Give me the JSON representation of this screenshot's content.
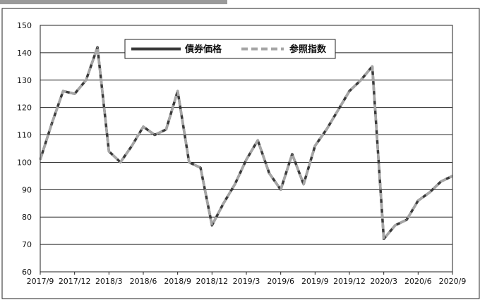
{
  "colors": {
    "bond": "#3a3a3a",
    "reference": "#a6a6a6",
    "grid": "#222222",
    "tab": "#9a9a9a"
  },
  "chart_data": {
    "type": "line",
    "title": "",
    "xlabel": "",
    "ylabel": "",
    "ylim": [
      60,
      150
    ],
    "yticks": [
      60,
      70,
      80,
      90,
      100,
      110,
      120,
      130,
      140,
      150
    ],
    "grid": true,
    "legend_position": "top-center",
    "x_tick_labels": [
      "2017/9",
      "2017/12",
      "2018/3",
      "2018/6",
      "2018/9",
      "2018/12",
      "2019/3",
      "2019/6",
      "2019/9",
      "2019/12",
      "2020/3",
      "2020/6",
      "2020/9"
    ],
    "x": [
      "2017/9",
      "2017/10",
      "2017/11",
      "2017/12",
      "2018/1",
      "2018/2",
      "2018/3",
      "2018/4",
      "2018/5",
      "2018/6",
      "2018/7",
      "2018/8",
      "2018/9",
      "2018/10",
      "2018/11",
      "2018/12",
      "2019/1",
      "2019/2",
      "2019/3",
      "2019/4",
      "2019/5",
      "2019/6",
      "2019/7",
      "2019/8",
      "2019/9",
      "2019/10",
      "2019/11",
      "2019/12",
      "2020/1",
      "2020/2",
      "2020/3",
      "2020/4",
      "2020/5",
      "2020/6",
      "2020/7",
      "2020/8",
      "2020/9"
    ],
    "series": [
      {
        "name": "債券価格",
        "style": "solid",
        "values": [
          101,
          114,
          126,
          125,
          130,
          142,
          104,
          100,
          106,
          113,
          110,
          112,
          126,
          100,
          98,
          77,
          85,
          92,
          101,
          108,
          96,
          90,
          103,
          92,
          106,
          112,
          119,
          126,
          130,
          135,
          72,
          77,
          79,
          86,
          89,
          93,
          95
        ]
      },
      {
        "name": "参照指数",
        "style": "dashed",
        "values": [
          101,
          114,
          126,
          125,
          130,
          142,
          104,
          100,
          106,
          113,
          110,
          112,
          126,
          100,
          98,
          77,
          85,
          92,
          101,
          108,
          96,
          90,
          103,
          92,
          106,
          112,
          119,
          126,
          130,
          135,
          72,
          77,
          79,
          86,
          89,
          93,
          95
        ]
      }
    ]
  }
}
